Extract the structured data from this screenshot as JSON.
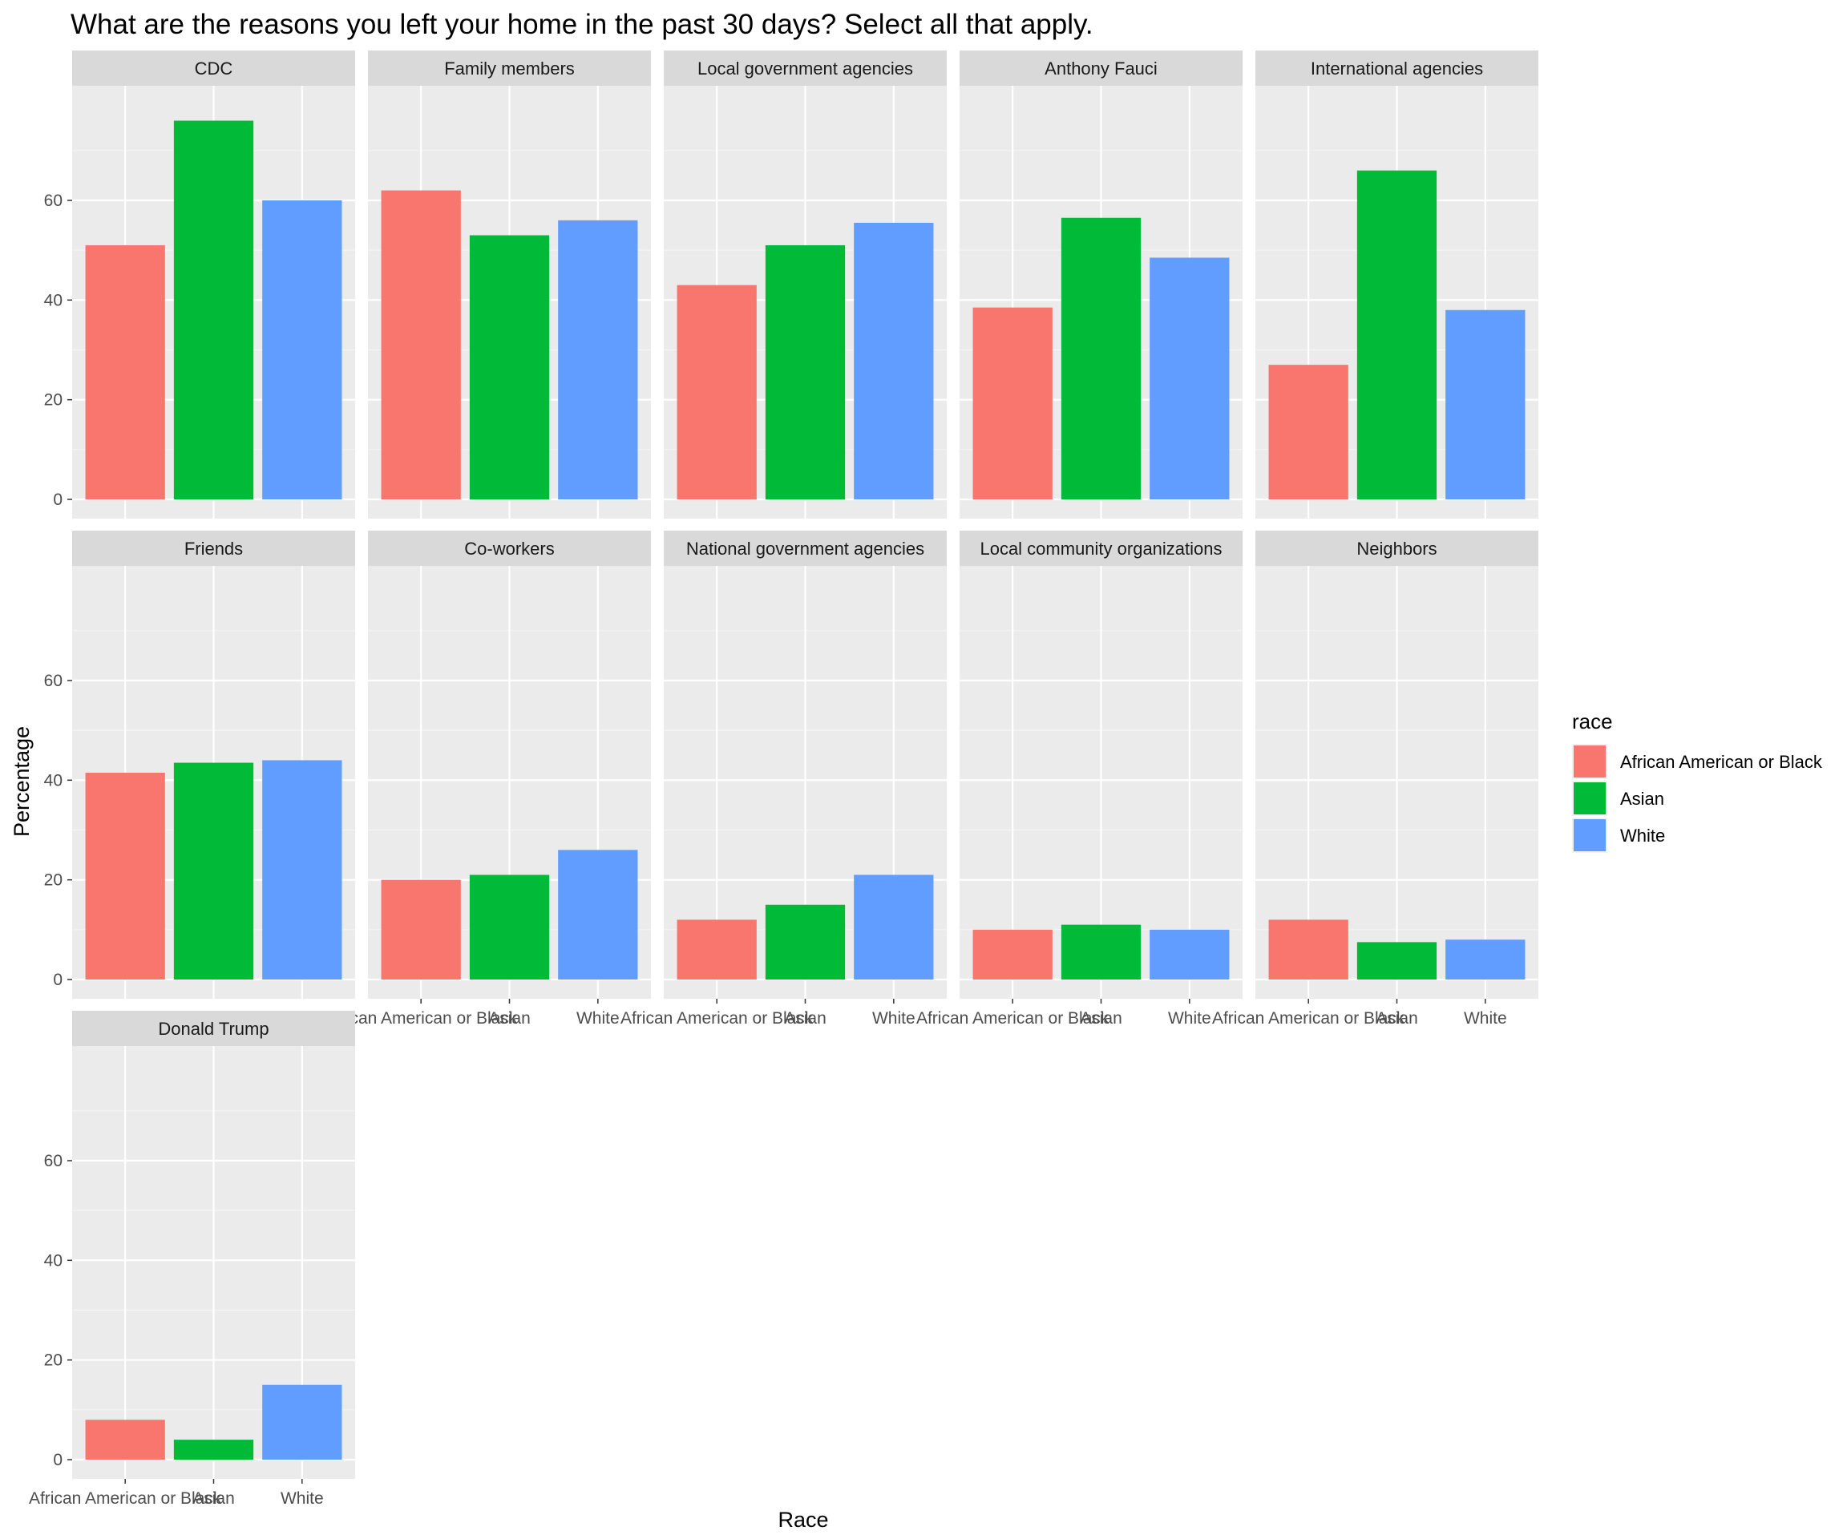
{
  "chart_data": {
    "type": "bar",
    "title": "What are the reasons you left your home in the past 30 days? Select all that apply.",
    "xlabel": "Race",
    "ylabel": "Percentage",
    "categories": [
      "African American or Black",
      "Asian",
      "White"
    ],
    "ylim": [
      0,
      80
    ],
    "y_ticks": [
      0,
      20,
      40,
      60
    ],
    "grid": true,
    "layout": "facet grid, 5 columns",
    "legend": {
      "title": "race",
      "position": "right",
      "entries": [
        {
          "label": "African American or Black",
          "color": "#F8766D"
        },
        {
          "label": "Asian",
          "color": "#00BA38"
        },
        {
          "label": "White",
          "color": "#619CFF"
        }
      ]
    },
    "panels": [
      {
        "label": "CDC",
        "values": [
          51,
          76,
          60
        ]
      },
      {
        "label": "Family members",
        "values": [
          62,
          53,
          56
        ]
      },
      {
        "label": "Local government agencies",
        "values": [
          43,
          51,
          55.5
        ]
      },
      {
        "label": "Anthony Fauci",
        "values": [
          38.5,
          56.5,
          48.5
        ]
      },
      {
        "label": "International agencies",
        "values": [
          27,
          66,
          38
        ]
      },
      {
        "label": "Friends",
        "values": [
          41.5,
          43.5,
          44
        ]
      },
      {
        "label": "Co-workers",
        "values": [
          20,
          21,
          26
        ]
      },
      {
        "label": "National government agencies",
        "values": [
          12,
          15,
          21
        ]
      },
      {
        "label": "Local community organizations",
        "values": [
          10,
          11,
          10
        ]
      },
      {
        "label": "Neighbors",
        "values": [
          12,
          7.5,
          8
        ]
      },
      {
        "label": "Donald Trump",
        "values": [
          8,
          4,
          15
        ]
      }
    ]
  }
}
